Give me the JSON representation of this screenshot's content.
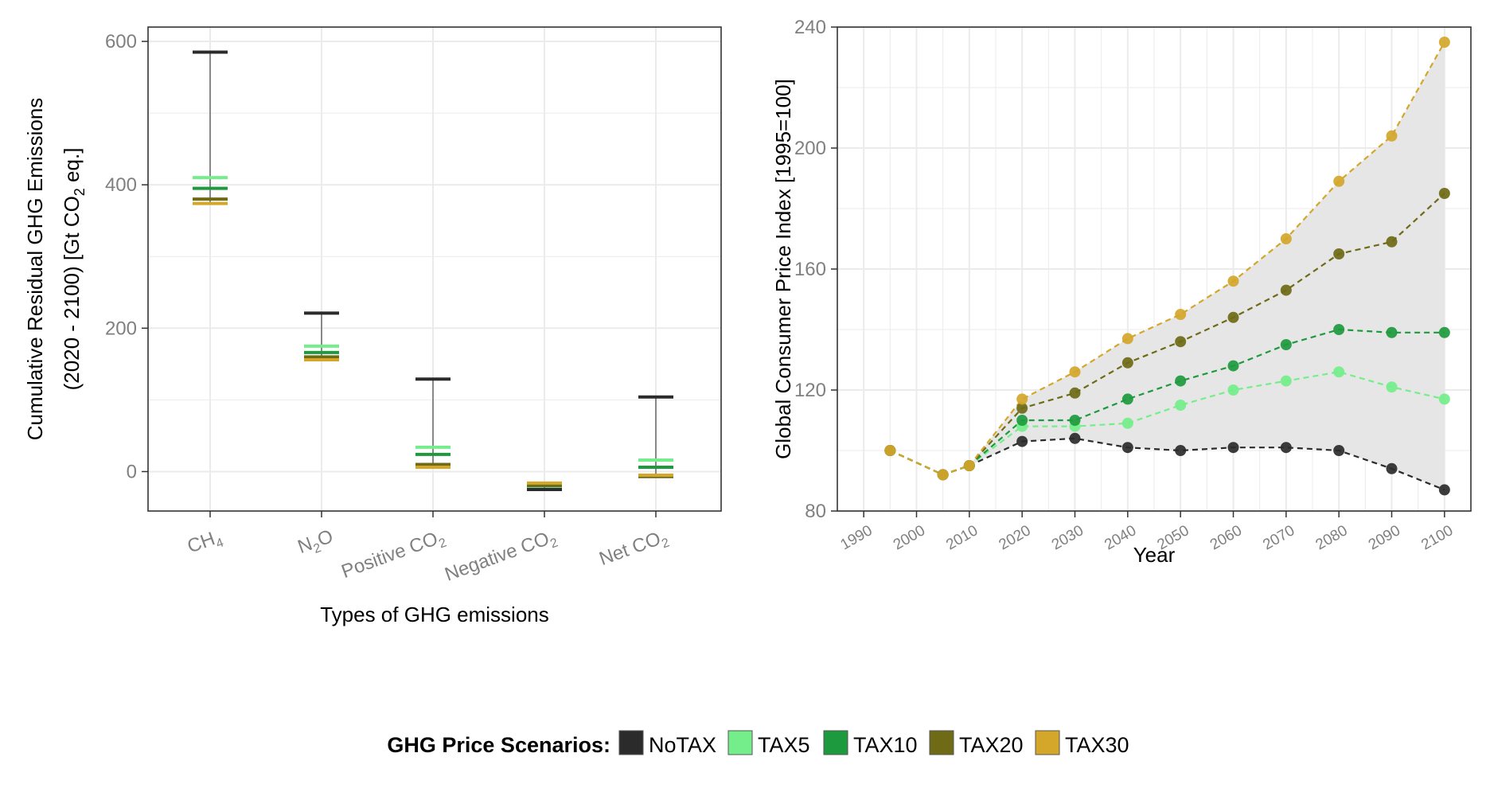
{
  "colors": {
    "NoTAX": "#2b2b2b",
    "TAX5": "#74ee8a",
    "TAX10": "#1e9a3e",
    "TAX20": "#6e6a16",
    "TAX30": "#d4a62a",
    "grid": "#ebebeb",
    "band": "#e6e6e6"
  },
  "legend": {
    "title": "GHG Price Scenarios:",
    "items": [
      "NoTAX",
      "TAX5",
      "TAX10",
      "TAX20",
      "TAX30"
    ]
  },
  "chart_data": [
    {
      "type": "errorbar",
      "title": "",
      "ylabel_line1": "Cumulative Residual GHG Emissions",
      "ylabel_line2_a": "(2020 - 2100) [Gt CO",
      "ylabel_line2_sub": "2",
      "ylabel_line2_b": " eq.]",
      "xlabel": "Types of GHG emissions",
      "ylim": [
        -55,
        620
      ],
      "yticks": [
        "0",
        "200",
        "400",
        "600"
      ],
      "categories": [
        {
          "main": "CH",
          "sub": "4",
          "post": ""
        },
        {
          "main": "N",
          "sub": "2",
          "post": "O"
        },
        {
          "main": "Positive CO",
          "sub": "2",
          "post": ""
        },
        {
          "main": "Negative CO",
          "sub": "2",
          "post": ""
        },
        {
          "main": "Net CO",
          "sub": "2",
          "post": ""
        }
      ],
      "series": [
        {
          "name": "NoTAX",
          "values": [
            585,
            221,
            129,
            -25,
            104
          ]
        },
        {
          "name": "TAX5",
          "values": [
            410,
            175,
            34,
            -17,
            16
          ]
        },
        {
          "name": "TAX10",
          "values": [
            395,
            166,
            24,
            -20,
            6
          ]
        },
        {
          "name": "TAX20",
          "values": [
            380,
            160,
            10,
            -19,
            -7
          ]
        },
        {
          "name": "TAX30",
          "values": [
            374,
            156,
            6,
            -16,
            -5
          ]
        }
      ]
    },
    {
      "type": "line",
      "title": "",
      "xlabel": "Year",
      "ylabel": "Global Consumer Price Index [1995=100]",
      "xlim": [
        1985,
        2105
      ],
      "ylim": [
        80,
        240
      ],
      "xticks": [
        "1990",
        "2000",
        "2010",
        "2020",
        "2030",
        "2040",
        "2050",
        "2060",
        "2070",
        "2080",
        "2090",
        "2100"
      ],
      "yticks": [
        "80",
        "120",
        "160",
        "200",
        "240"
      ],
      "x": [
        1995,
        2005,
        2010,
        2020,
        2030,
        2040,
        2050,
        2060,
        2070,
        2080,
        2090,
        2100
      ],
      "series": [
        {
          "name": "NoTAX",
          "values": [
            100,
            92,
            95,
            103,
            104,
            101,
            100,
            101,
            101,
            100,
            94,
            87
          ]
        },
        {
          "name": "TAX5",
          "values": [
            100,
            92,
            95,
            108,
            108,
            109,
            115,
            120,
            123,
            126,
            121,
            117
          ]
        },
        {
          "name": "TAX10",
          "values": [
            100,
            92,
            95,
            110,
            110,
            117,
            123,
            128,
            135,
            140,
            139,
            139
          ]
        },
        {
          "name": "TAX20",
          "values": [
            100,
            92,
            95,
            114,
            119,
            129,
            136,
            144,
            153,
            165,
            169,
            185
          ]
        },
        {
          "name": "TAX30",
          "values": [
            100,
            92,
            95,
            117,
            126,
            137,
            145,
            156,
            170,
            189,
            204,
            235
          ]
        }
      ]
    }
  ]
}
